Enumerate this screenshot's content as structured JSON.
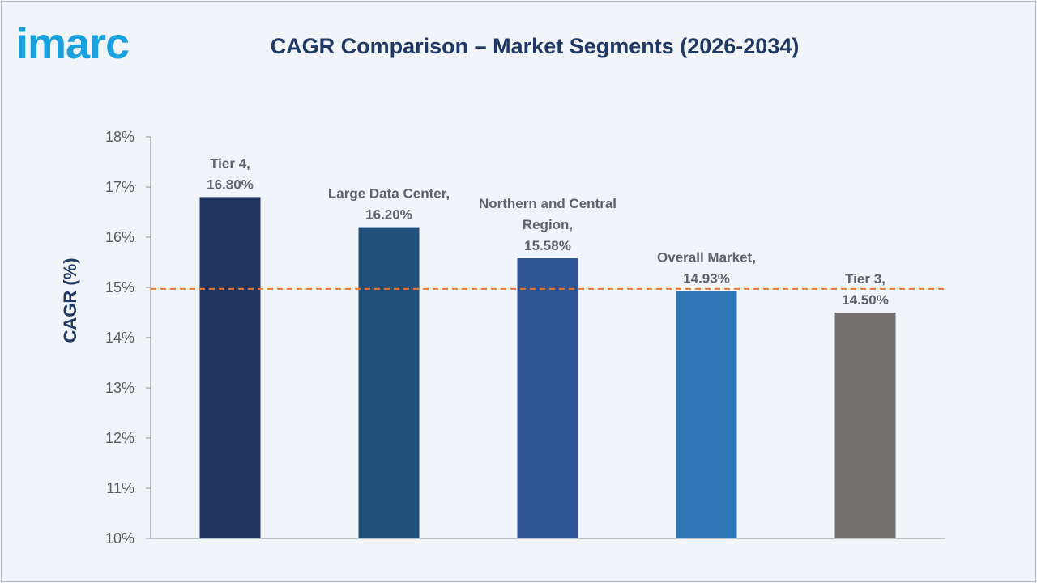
{
  "logo": {
    "text": "imarc",
    "color": "#1aa0dc"
  },
  "chart_data": {
    "type": "bar",
    "title": "CAGR Comparison – Market Segments (2026-2034)",
    "xlabel": "",
    "ylabel": "CAGR (%)",
    "ylim": [
      10,
      18
    ],
    "ytick_values": [
      10,
      11,
      12,
      13,
      14,
      15,
      16,
      17,
      18
    ],
    "ytick_labels": [
      "10%",
      "11%",
      "12%",
      "13%",
      "14%",
      "15%",
      "16%",
      "17%",
      "18%"
    ],
    "reference_line": {
      "value": 14.97,
      "style": "dashed",
      "color": "#e0793b"
    },
    "grid": false,
    "legend": "none",
    "bars": [
      {
        "category": "Tier 4",
        "value": 16.8,
        "label_lines": [
          "Tier 4,",
          "16.80%"
        ],
        "color": "#1f345e"
      },
      {
        "category": "Large Data Center",
        "value": 16.2,
        "label_lines": [
          "Large Data Center,",
          "16.20%"
        ],
        "color": "#1f4e79"
      },
      {
        "category": "Northern and Central Region",
        "value": 15.58,
        "label_lines": [
          "Northern and Central",
          "Region,",
          "15.58%"
        ],
        "color": "#2f5597"
      },
      {
        "category": "Overall Market",
        "value": 14.93,
        "label_lines": [
          "Overall Market,",
          "14.93%"
        ],
        "color": "#2e75b6"
      },
      {
        "category": "Tier 3",
        "value": 14.5,
        "label_lines": [
          "Tier 3,",
          "14.50%"
        ],
        "color": "#767171"
      }
    ]
  }
}
